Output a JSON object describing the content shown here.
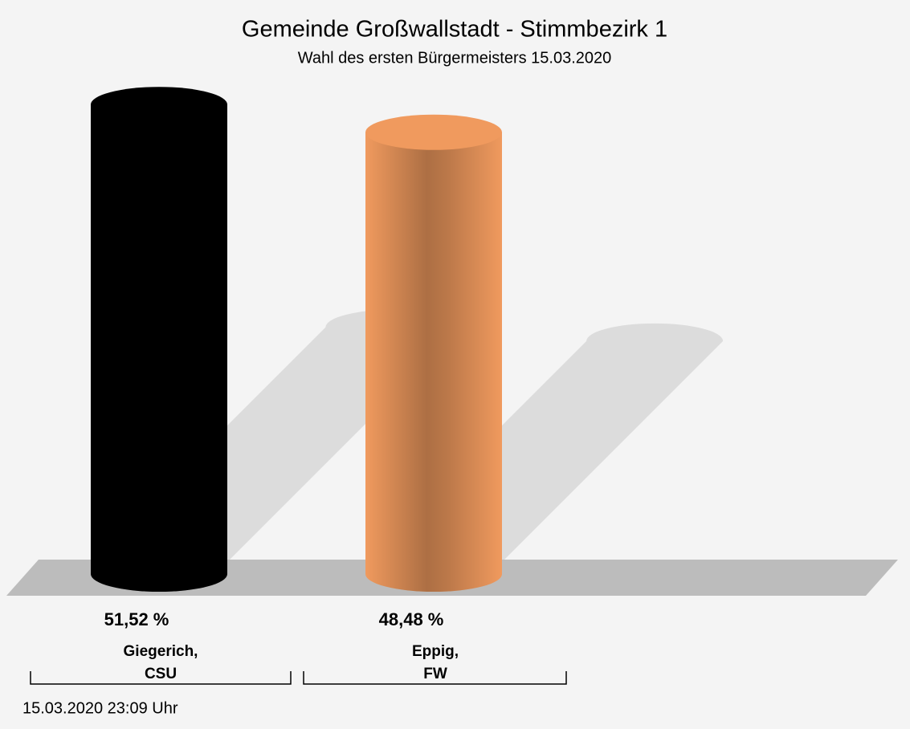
{
  "chart_data": {
    "type": "cylinder",
    "title": "Gemeinde Großwallstadt - Stimmbezirk 1",
    "subtitle": "Wahl des ersten Bürgermeisters 15.03.2020",
    "categories": [
      "Giegerich,\nCSU",
      "Eppig,\nFW"
    ],
    "values": [
      51.52,
      48.48
    ],
    "value_labels": [
      "51,52 %",
      "48,48 %"
    ],
    "colors": [
      "#000000",
      "#f09a5e"
    ],
    "footer": "15.03.2020 23:09 Uhr"
  }
}
